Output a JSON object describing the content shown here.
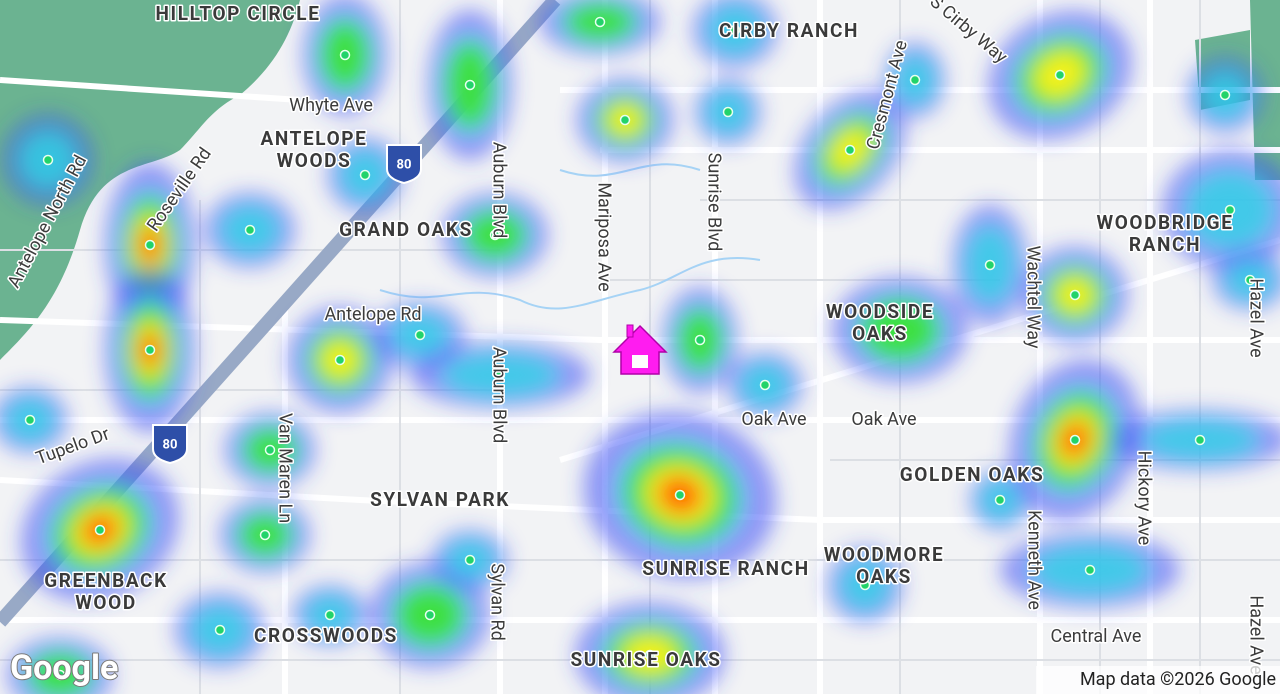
{
  "neighborhoods": [
    [
      "HILLTOP CIRCLE"
    ],
    [
      "CIRBY RANCH"
    ],
    [
      "ANTELOPE",
      "WOODS"
    ],
    [
      "GRAND OAKS"
    ],
    [
      "WOODBRIDGE",
      "RANCH"
    ],
    [
      "WOODSIDE",
      "OAKS"
    ],
    [
      "GOLDEN OAKS"
    ],
    [
      "SYLVAN PARK"
    ],
    [
      "SUNRISE RANCH"
    ],
    [
      "WOODMORE",
      "OAKS"
    ],
    [
      "GREENBACK",
      "WOOD"
    ],
    [
      "CROSSWOODS"
    ],
    [
      "SUNRISE OAKS"
    ]
  ],
  "streets": [
    "S Cirby Way",
    "Cresmont Ave",
    "Whyte Ave",
    "Auburn Blvd",
    "Mariposa Ave",
    "Sunrise Blvd",
    "Antelope North Rd",
    "Roseville Rd",
    "Wachtel Way",
    "Hazel Ave",
    "Antelope Rd",
    "Auburn Blvd",
    "Oak Ave",
    "Oak Ave",
    "Tupelo Dr",
    "Van Maren Ln",
    "Hickory Ave",
    "Kenneth Ave",
    "Sylvan Rd",
    "Central Ave",
    "Hazel Ave"
  ],
  "highway_shields": [
    "80",
    "80"
  ],
  "attribution": "Map data ©2026 Google",
  "logo": "Google"
}
